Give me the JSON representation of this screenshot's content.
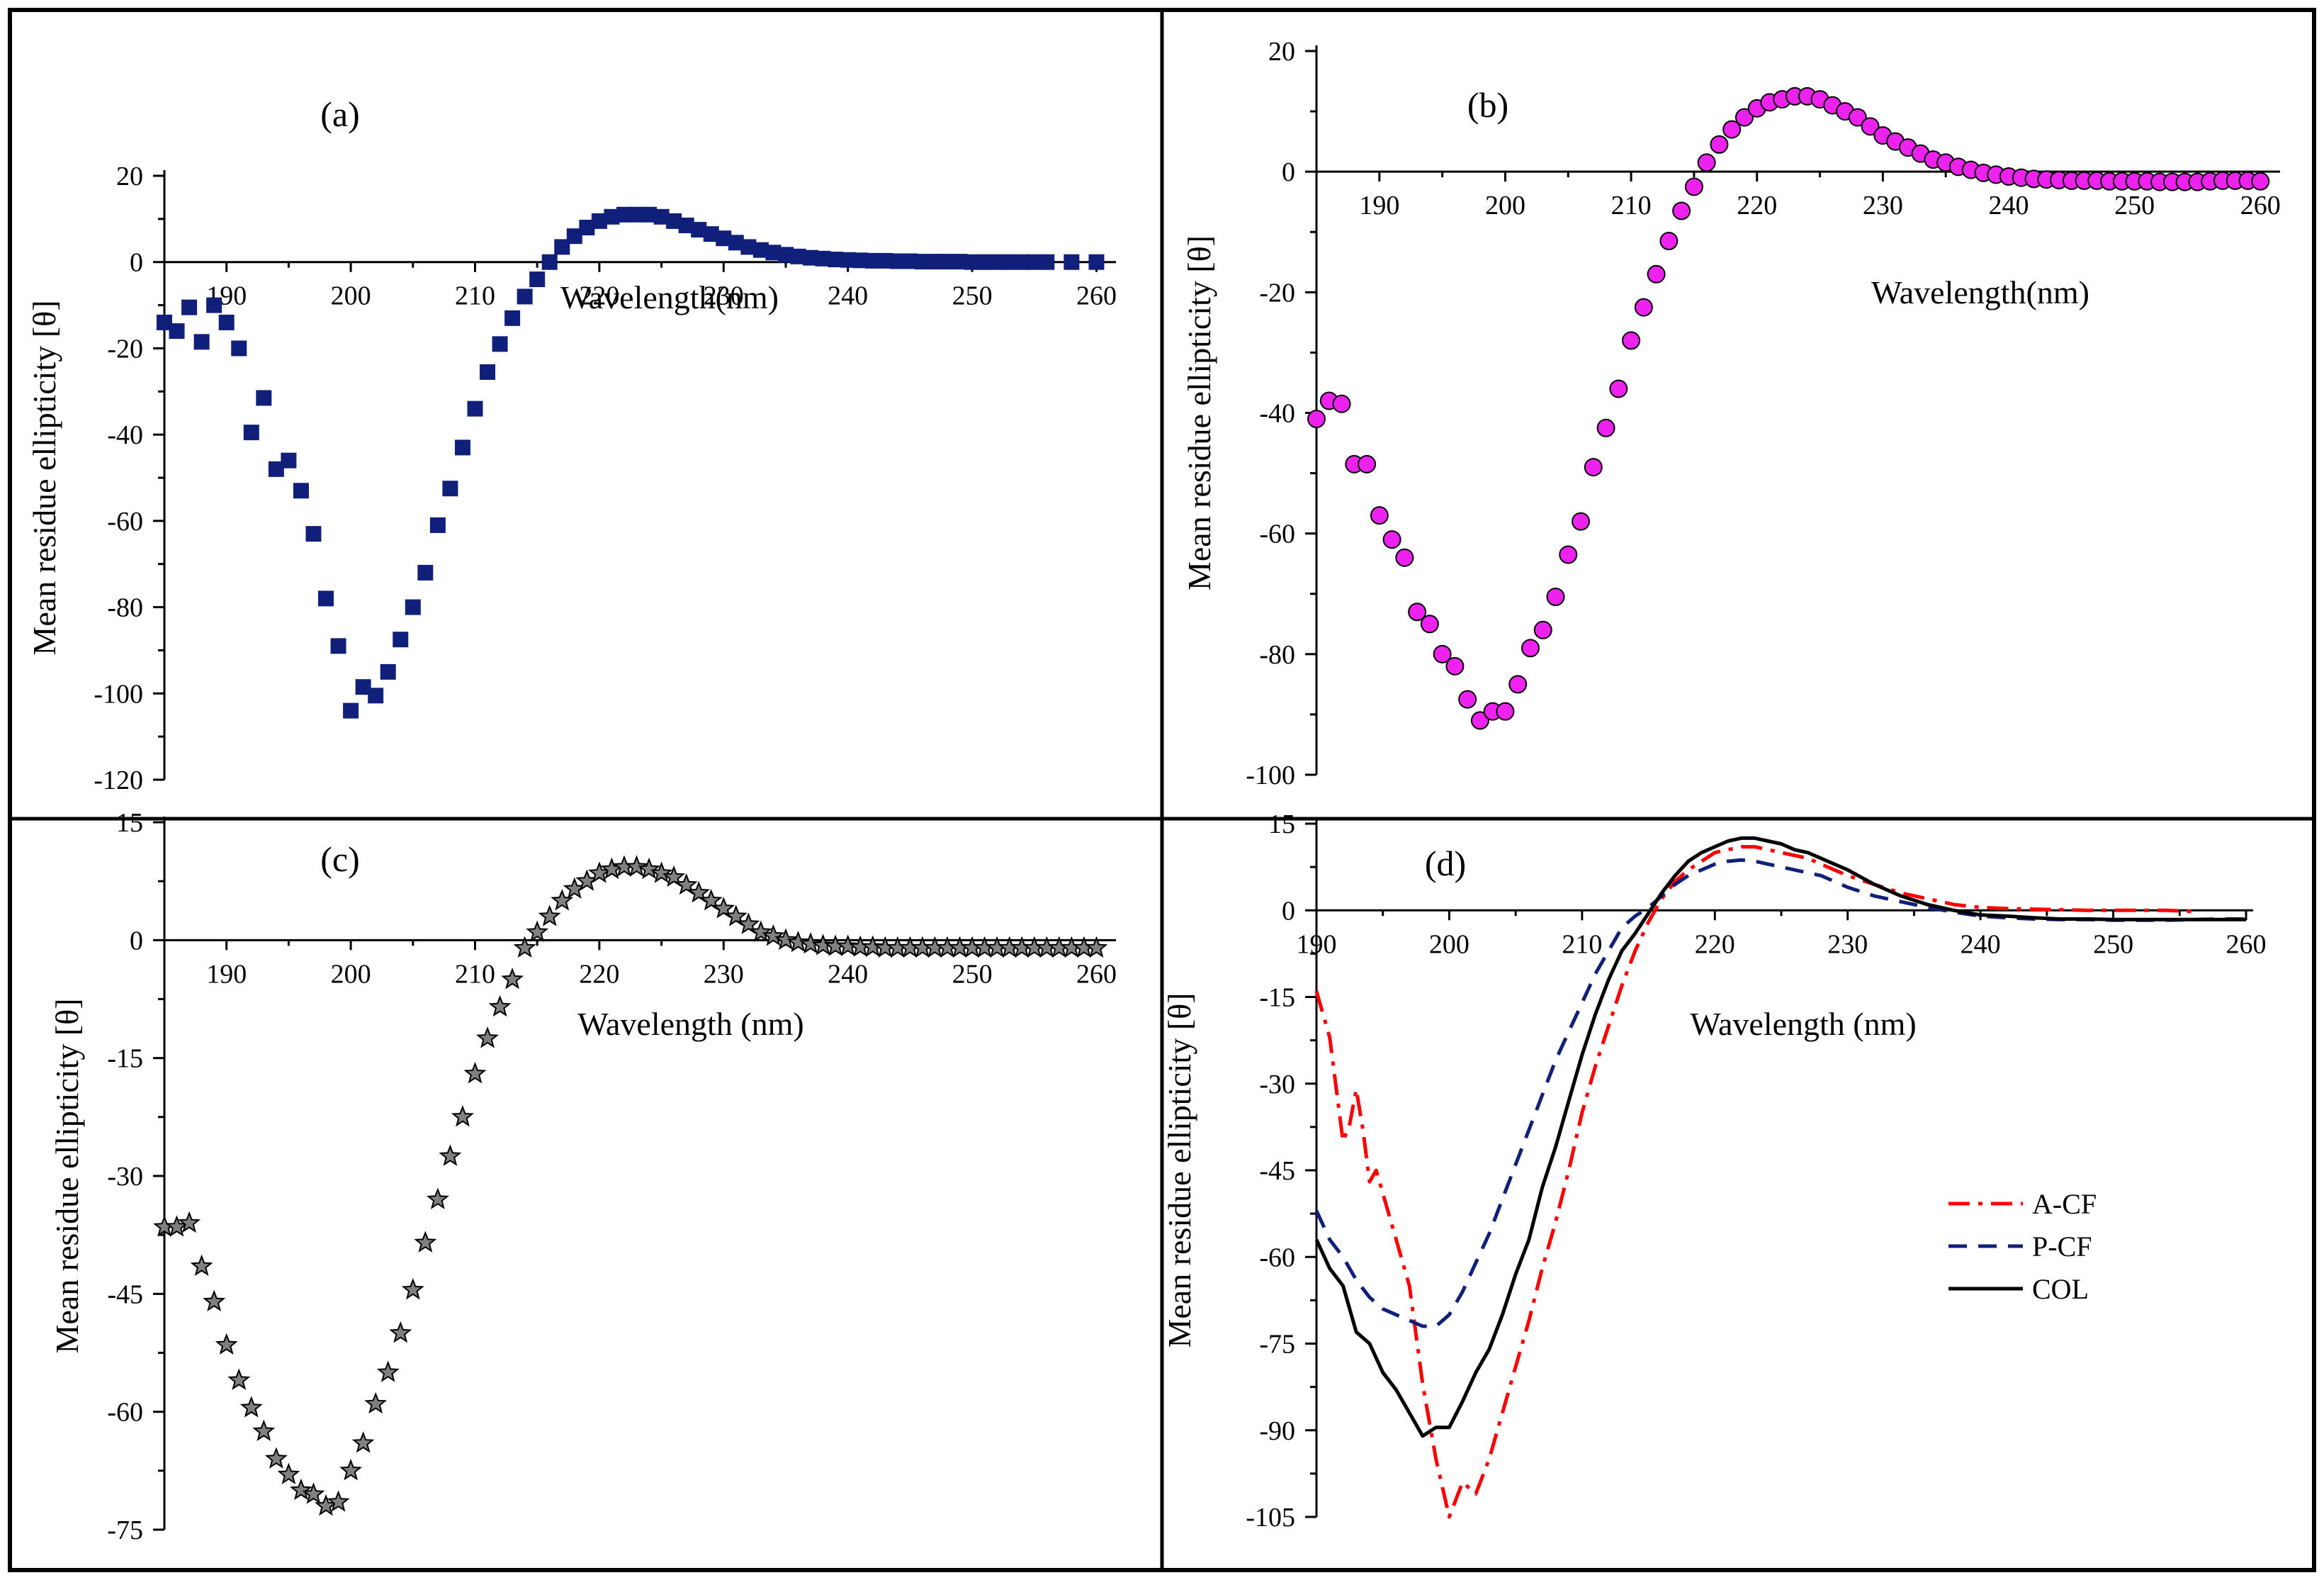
{
  "chart_data": [
    {
      "type": "scatter",
      "panel_label": "(a)",
      "xlabel": "Wavelength(nm)",
      "ylabel": "Mean residue ellipticity [θ]",
      "xlim": [
        185,
        261
      ],
      "ylim": [
        -120,
        20
      ],
      "xticks": [
        190,
        200,
        210,
        220,
        230,
        240,
        250,
        260
      ],
      "yticks": [
        20,
        0,
        -20,
        -40,
        -60,
        -80,
        -100,
        -120
      ],
      "marker": "square",
      "color": "#10207a",
      "series": [
        {
          "x": [
            185,
            186,
            187,
            188,
            189,
            190,
            191,
            192,
            193,
            194,
            195,
            196,
            197,
            198,
            199,
            200,
            201,
            202,
            203,
            204,
            205,
            206,
            207,
            208,
            209,
            210,
            211,
            212,
            213,
            214,
            215,
            216,
            217,
            218,
            219,
            220,
            221,
            222,
            223,
            224,
            225,
            226,
            227,
            228,
            229,
            230,
            231,
            232,
            233,
            234,
            235,
            236,
            237,
            238,
            239,
            240,
            241,
            242,
            243,
            244,
            245,
            246,
            247,
            248,
            249,
            250,
            251,
            252,
            253,
            254,
            255,
            256,
            258,
            260
          ],
          "y": [
            -14,
            -16,
            -10.5,
            -18.5,
            -10,
            -14,
            -20,
            -39.5,
            -31.5,
            -48,
            -46,
            -53,
            -63,
            -78,
            -89,
            -104,
            -98.5,
            -100.5,
            -95,
            -87.5,
            -80,
            -72,
            -61,
            -52.5,
            -43,
            -34,
            -25.5,
            -19,
            -13,
            -8,
            -4,
            0,
            3.5,
            6,
            8,
            9.5,
            10.5,
            11,
            11,
            11,
            10.5,
            9.5,
            8.5,
            7.5,
            6.5,
            5.5,
            4.5,
            3.5,
            2.8,
            2.2,
            1.7,
            1.3,
            1,
            0.8,
            0.6,
            0.5,
            0.4,
            0.3,
            0.3,
            0.2,
            0.2,
            0.1,
            0.1,
            0.1,
            0.1,
            0,
            0,
            0,
            0,
            0,
            0,
            0,
            0,
            0
          ]
        }
      ]
    },
    {
      "type": "scatter",
      "panel_label": "(b)",
      "xlabel": "Wavelength(nm)",
      "ylabel": "Mean residue ellipticity [θ]",
      "xlim": [
        185,
        261
      ],
      "ylim": [
        -100,
        20
      ],
      "xticks": [
        190,
        200,
        210,
        220,
        230,
        240,
        250,
        260
      ],
      "yticks": [
        20,
        0,
        -20,
        -40,
        -60,
        -80,
        -100
      ],
      "marker": "circle",
      "color": "#ee22ee",
      "series": [
        {
          "x": [
            185,
            186,
            187,
            188,
            189,
            190,
            191,
            192,
            193,
            194,
            195,
            196,
            197,
            198,
            199,
            200,
            201,
            202,
            203,
            204,
            205,
            206,
            207,
            208,
            209,
            210,
            211,
            212,
            213,
            214,
            215,
            216,
            217,
            218,
            219,
            220,
            221,
            222,
            223,
            224,
            225,
            226,
            227,
            228,
            229,
            230,
            231,
            232,
            233,
            234,
            235,
            236,
            237,
            238,
            239,
            240,
            241,
            242,
            243,
            244,
            245,
            246,
            247,
            248,
            249,
            250,
            251,
            252,
            253,
            254,
            255,
            256,
            257,
            258,
            259,
            260
          ],
          "y": [
            -41,
            -38,
            -38.5,
            -48.5,
            -48.5,
            -57,
            -61,
            -64,
            -73,
            -75,
            -80,
            -82,
            -87.5,
            -91,
            -89.5,
            -89.5,
            -85,
            -79,
            -76,
            -70.5,
            -63.5,
            -58,
            -49,
            -42.5,
            -36,
            -28,
            -22.5,
            -17,
            -11.5,
            -6.5,
            -2.5,
            1.5,
            4.5,
            7,
            9,
            10.5,
            11.5,
            12,
            12.5,
            12.5,
            12,
            11,
            10,
            9,
            7.5,
            6,
            5,
            4,
            3,
            2,
            1.5,
            0.8,
            0.3,
            -0.2,
            -0.5,
            -0.8,
            -1,
            -1.2,
            -1.3,
            -1.4,
            -1.5,
            -1.5,
            -1.5,
            -1.6,
            -1.6,
            -1.6,
            -1.6,
            -1.7,
            -1.7,
            -1.7,
            -1.7,
            -1.6,
            -1.5,
            -1.5,
            -1.5,
            -1.6
          ]
        }
      ]
    },
    {
      "type": "scatter",
      "panel_label": "(c)",
      "xlabel": "Wavelength (nm)",
      "ylabel": "Mean residue ellipticity [θ]",
      "xlim": [
        185,
        261
      ],
      "ylim": [
        -75,
        15
      ],
      "xticks": [
        190,
        200,
        210,
        220,
        230,
        240,
        250,
        260
      ],
      "yticks": [
        15,
        0,
        -15,
        -30,
        -45,
        -60,
        -75
      ],
      "marker": "star",
      "color": "#808080",
      "series": [
        {
          "x": [
            185,
            186,
            187,
            188,
            189,
            190,
            191,
            192,
            193,
            194,
            195,
            196,
            197,
            198,
            199,
            200,
            201,
            202,
            203,
            204,
            205,
            206,
            207,
            208,
            209,
            210,
            211,
            212,
            213,
            214,
            215,
            216,
            217,
            218,
            219,
            220,
            221,
            222,
            223,
            224,
            225,
            226,
            227,
            228,
            229,
            230,
            231,
            232,
            233,
            234,
            235,
            236,
            237,
            238,
            239,
            240,
            241,
            242,
            243,
            244,
            245,
            246,
            247,
            248,
            249,
            250,
            251,
            252,
            253,
            254,
            255,
            256,
            257,
            258,
            259,
            260
          ],
          "y": [
            -36.5,
            -36.5,
            -36,
            -41.5,
            -46,
            -51.5,
            -56,
            -59.5,
            -62.5,
            -66,
            -68,
            -70,
            -70.5,
            -72,
            -71.5,
            -67.5,
            -64,
            -59,
            -55,
            -50,
            -44.5,
            -38.5,
            -33,
            -27.5,
            -22.5,
            -17,
            -12.5,
            -8.5,
            -5,
            -1,
            1,
            3,
            5,
            6.5,
            7.5,
            8.5,
            9,
            9.3,
            9.3,
            9,
            8.5,
            8,
            7,
            6,
            5,
            4,
            3,
            2,
            1,
            0.5,
            0,
            -0.3,
            -0.5,
            -0.7,
            -0.8,
            -0.8,
            -0.9,
            -0.9,
            -1,
            -1,
            -1,
            -1,
            -1,
            -1,
            -1,
            -1,
            -1,
            -1,
            -1,
            -1,
            -1,
            -1,
            -1,
            -1,
            -1,
            -1
          ]
        }
      ]
    },
    {
      "type": "line",
      "panel_label": "(d)",
      "xlabel": "Wavelength (nm)",
      "ylabel": "Mean residue ellipticity [θ]",
      "xlim": [
        190,
        260
      ],
      "ylim": [
        -105,
        15
      ],
      "xticks": [
        190,
        200,
        210,
        220,
        230,
        240,
        250,
        260
      ],
      "yticks": [
        15,
        0,
        -15,
        -30,
        -45,
        -60,
        -75,
        -90,
        -105
      ],
      "legend": [
        "A-CF",
        "P-CF",
        "COL"
      ],
      "series": [
        {
          "name": "A-CF",
          "color": "#ff0000",
          "dash": "dashdot",
          "x": [
            190,
            191,
            192,
            192.5,
            193,
            193.5,
            194,
            194.5,
            195,
            196,
            197,
            198,
            199,
            200,
            201,
            202,
            203,
            204,
            205,
            206,
            207,
            208,
            209,
            210,
            211,
            212,
            213,
            214,
            215,
            216,
            217,
            218,
            219,
            220,
            221,
            222,
            223,
            224,
            225,
            226,
            227,
            228,
            229,
            230,
            232,
            234,
            236,
            238,
            240,
            242,
            244,
            246,
            248,
            250,
            252,
            254,
            256
          ],
          "y": [
            -14,
            -22,
            -40,
            -37,
            -31,
            -38,
            -47,
            -45,
            -49,
            -57,
            -65,
            -82,
            -95,
            -105,
            -99,
            -101,
            -95,
            -87,
            -79,
            -71,
            -62,
            -54,
            -45,
            -35,
            -27,
            -20,
            -13,
            -7,
            -2,
            2,
            5,
            7,
            8.5,
            10,
            10.5,
            11,
            11,
            10.5,
            10,
            9.5,
            9,
            8,
            7,
            6,
            4.5,
            3,
            2,
            1,
            0.5,
            0.3,
            0.2,
            0.1,
            0,
            0,
            0,
            0,
            -0.2
          ]
        },
        {
          "name": "P-CF",
          "color": "#10207a",
          "dash": "dashed",
          "x": [
            190,
            191,
            192,
            193,
            194,
            195,
            196,
            197,
            198,
            199,
            200,
            201,
            202,
            203,
            204,
            205,
            206,
            207,
            208,
            209,
            210,
            211,
            212,
            213,
            214,
            215,
            216,
            217,
            218,
            219,
            220,
            221,
            222,
            223,
            224,
            225,
            226,
            227,
            228,
            229,
            230,
            232,
            234,
            236,
            238,
            240,
            242,
            244,
            246,
            248,
            250,
            252,
            254,
            256,
            258,
            260
          ],
          "y": [
            -52,
            -57,
            -60,
            -64,
            -67,
            -69,
            -70,
            -71,
            -72,
            -72,
            -70,
            -66,
            -61,
            -56,
            -50,
            -44,
            -38,
            -32,
            -26,
            -21,
            -16,
            -11,
            -7,
            -3,
            -1,
            0.5,
            2.5,
            4.5,
            6,
            7,
            8,
            8.5,
            8.7,
            8.5,
            8,
            7.5,
            7,
            6.5,
            6,
            5,
            4,
            2.5,
            1.5,
            0.5,
            -0.3,
            -1,
            -1.3,
            -1.5,
            -1.6,
            -1.6,
            -1.7,
            -1.7,
            -1.7,
            -1.6,
            -1.5,
            -1.5
          ]
        },
        {
          "name": "COL",
          "color": "#000000",
          "dash": "solid",
          "x": [
            190,
            191,
            192,
            193,
            194,
            195,
            196,
            197,
            198,
            199,
            200,
            201,
            202,
            203,
            204,
            205,
            206,
            207,
            208,
            209,
            210,
            211,
            212,
            213,
            214,
            215,
            216,
            217,
            218,
            219,
            220,
            221,
            222,
            223,
            224,
            225,
            226,
            227,
            228,
            229,
            230,
            232,
            234,
            236,
            238,
            240,
            242,
            244,
            246,
            248,
            250,
            252,
            254,
            256,
            258,
            260
          ],
          "y": [
            -57,
            -62,
            -65,
            -73,
            -75,
            -80,
            -83,
            -87,
            -91,
            -89.5,
            -89.5,
            -85,
            -80,
            -76,
            -70,
            -63,
            -57,
            -48,
            -41,
            -33,
            -25,
            -18,
            -12,
            -7,
            -4,
            -0.5,
            3,
            6,
            8.5,
            10,
            11,
            12,
            12.5,
            12.5,
            12,
            11.5,
            10.5,
            10,
            9,
            8,
            7,
            4.5,
            2.5,
            1,
            0,
            -0.8,
            -1,
            -1.3,
            -1.5,
            -1.5,
            -1.6,
            -1.6,
            -1.6,
            -1.6,
            -1.6,
            -1.6
          ]
        }
      ]
    }
  ]
}
